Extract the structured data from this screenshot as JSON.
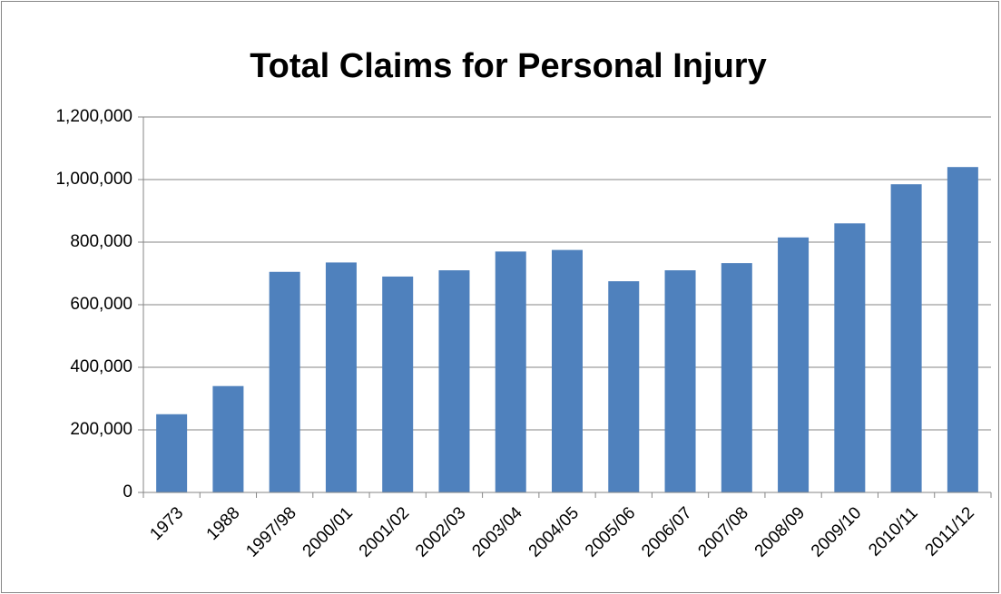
{
  "chart_data": {
    "type": "bar",
    "title": "Total Claims for Personal Injury",
    "categories": [
      "1973",
      "1988",
      "1997/98",
      "2000/01",
      "2001/02",
      "2002/03",
      "2003/04",
      "2004/05",
      "2005/06",
      "2006/07",
      "2007/08",
      "2008/09",
      "2009/10",
      "2010/11",
      "2011/12"
    ],
    "values": [
      250000,
      340000,
      705000,
      735000,
      690000,
      710000,
      770000,
      775000,
      675000,
      710000,
      733000,
      815000,
      860000,
      985000,
      1040000
    ],
    "color": "#4f81bd",
    "ylim": [
      0,
      1200000
    ],
    "yticks": [
      0,
      {
        "value": 200000,
        "label": "200,000"
      },
      {
        "value": 400000,
        "label": "400,000"
      },
      {
        "value": 600000,
        "label": "600,000"
      },
      {
        "value": 800000,
        "label": "800,000"
      },
      {
        "value": 1000000,
        "label": "1,000,000"
      },
      {
        "value": 1200000,
        "label": "1,200,000"
      }
    ],
    "grid": true
  }
}
